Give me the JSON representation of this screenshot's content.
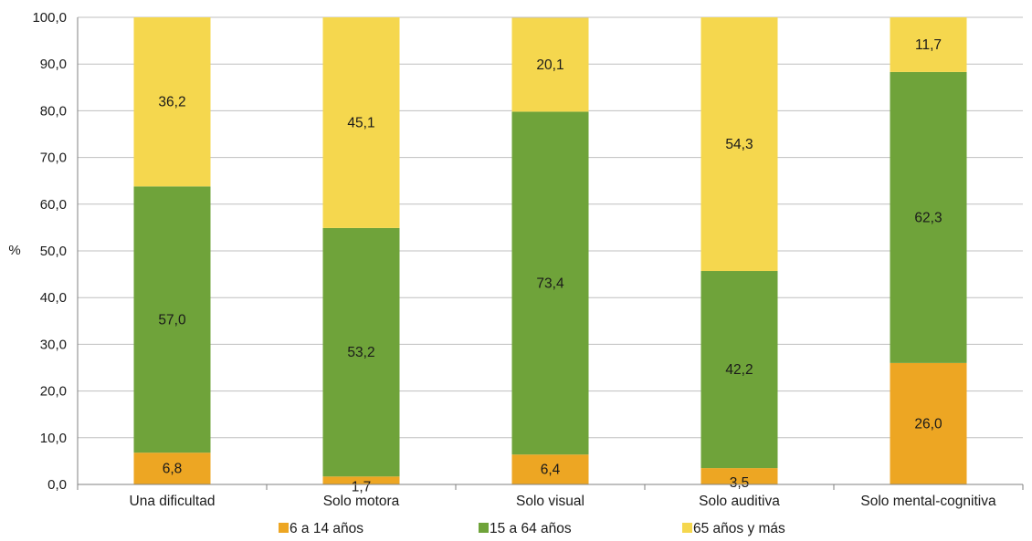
{
  "chart_data": {
    "type": "bar",
    "stacked": true,
    "categories": [
      "Una dificultad",
      "Solo motora",
      "Solo visual",
      "Solo auditiva",
      "Solo mental-cognitiva"
    ],
    "series": [
      {
        "name": "6 a 14 años",
        "color": "#EDA623",
        "values": [
          6.8,
          1.7,
          6.4,
          3.5,
          26.0
        ],
        "labels": [
          "6,8",
          "1,7",
          "6,4",
          "3,5",
          "26,0"
        ]
      },
      {
        "name": "15 a 64 años",
        "color": "#6FA33A",
        "values": [
          57.0,
          53.2,
          73.4,
          42.2,
          62.3
        ],
        "labels": [
          "57,0",
          "53,2",
          "73,4",
          "42,2",
          "62,3"
        ]
      },
      {
        "name": "65 años y más",
        "color": "#F5D74E",
        "values": [
          36.2,
          45.1,
          20.1,
          54.3,
          11.7
        ],
        "labels": [
          "36,2",
          "45,1",
          "20,1",
          "54,3",
          "11,7"
        ]
      }
    ],
    "ylabel": "%",
    "xlabel": "",
    "ylim": [
      0,
      100
    ],
    "yticks": [
      "0,0",
      "10,0",
      "20,0",
      "30,0",
      "40,0",
      "50,0",
      "60,0",
      "70,0",
      "80,0",
      "90,0",
      "100,0"
    ],
    "grid": true,
    "legend_position": "bottom"
  }
}
